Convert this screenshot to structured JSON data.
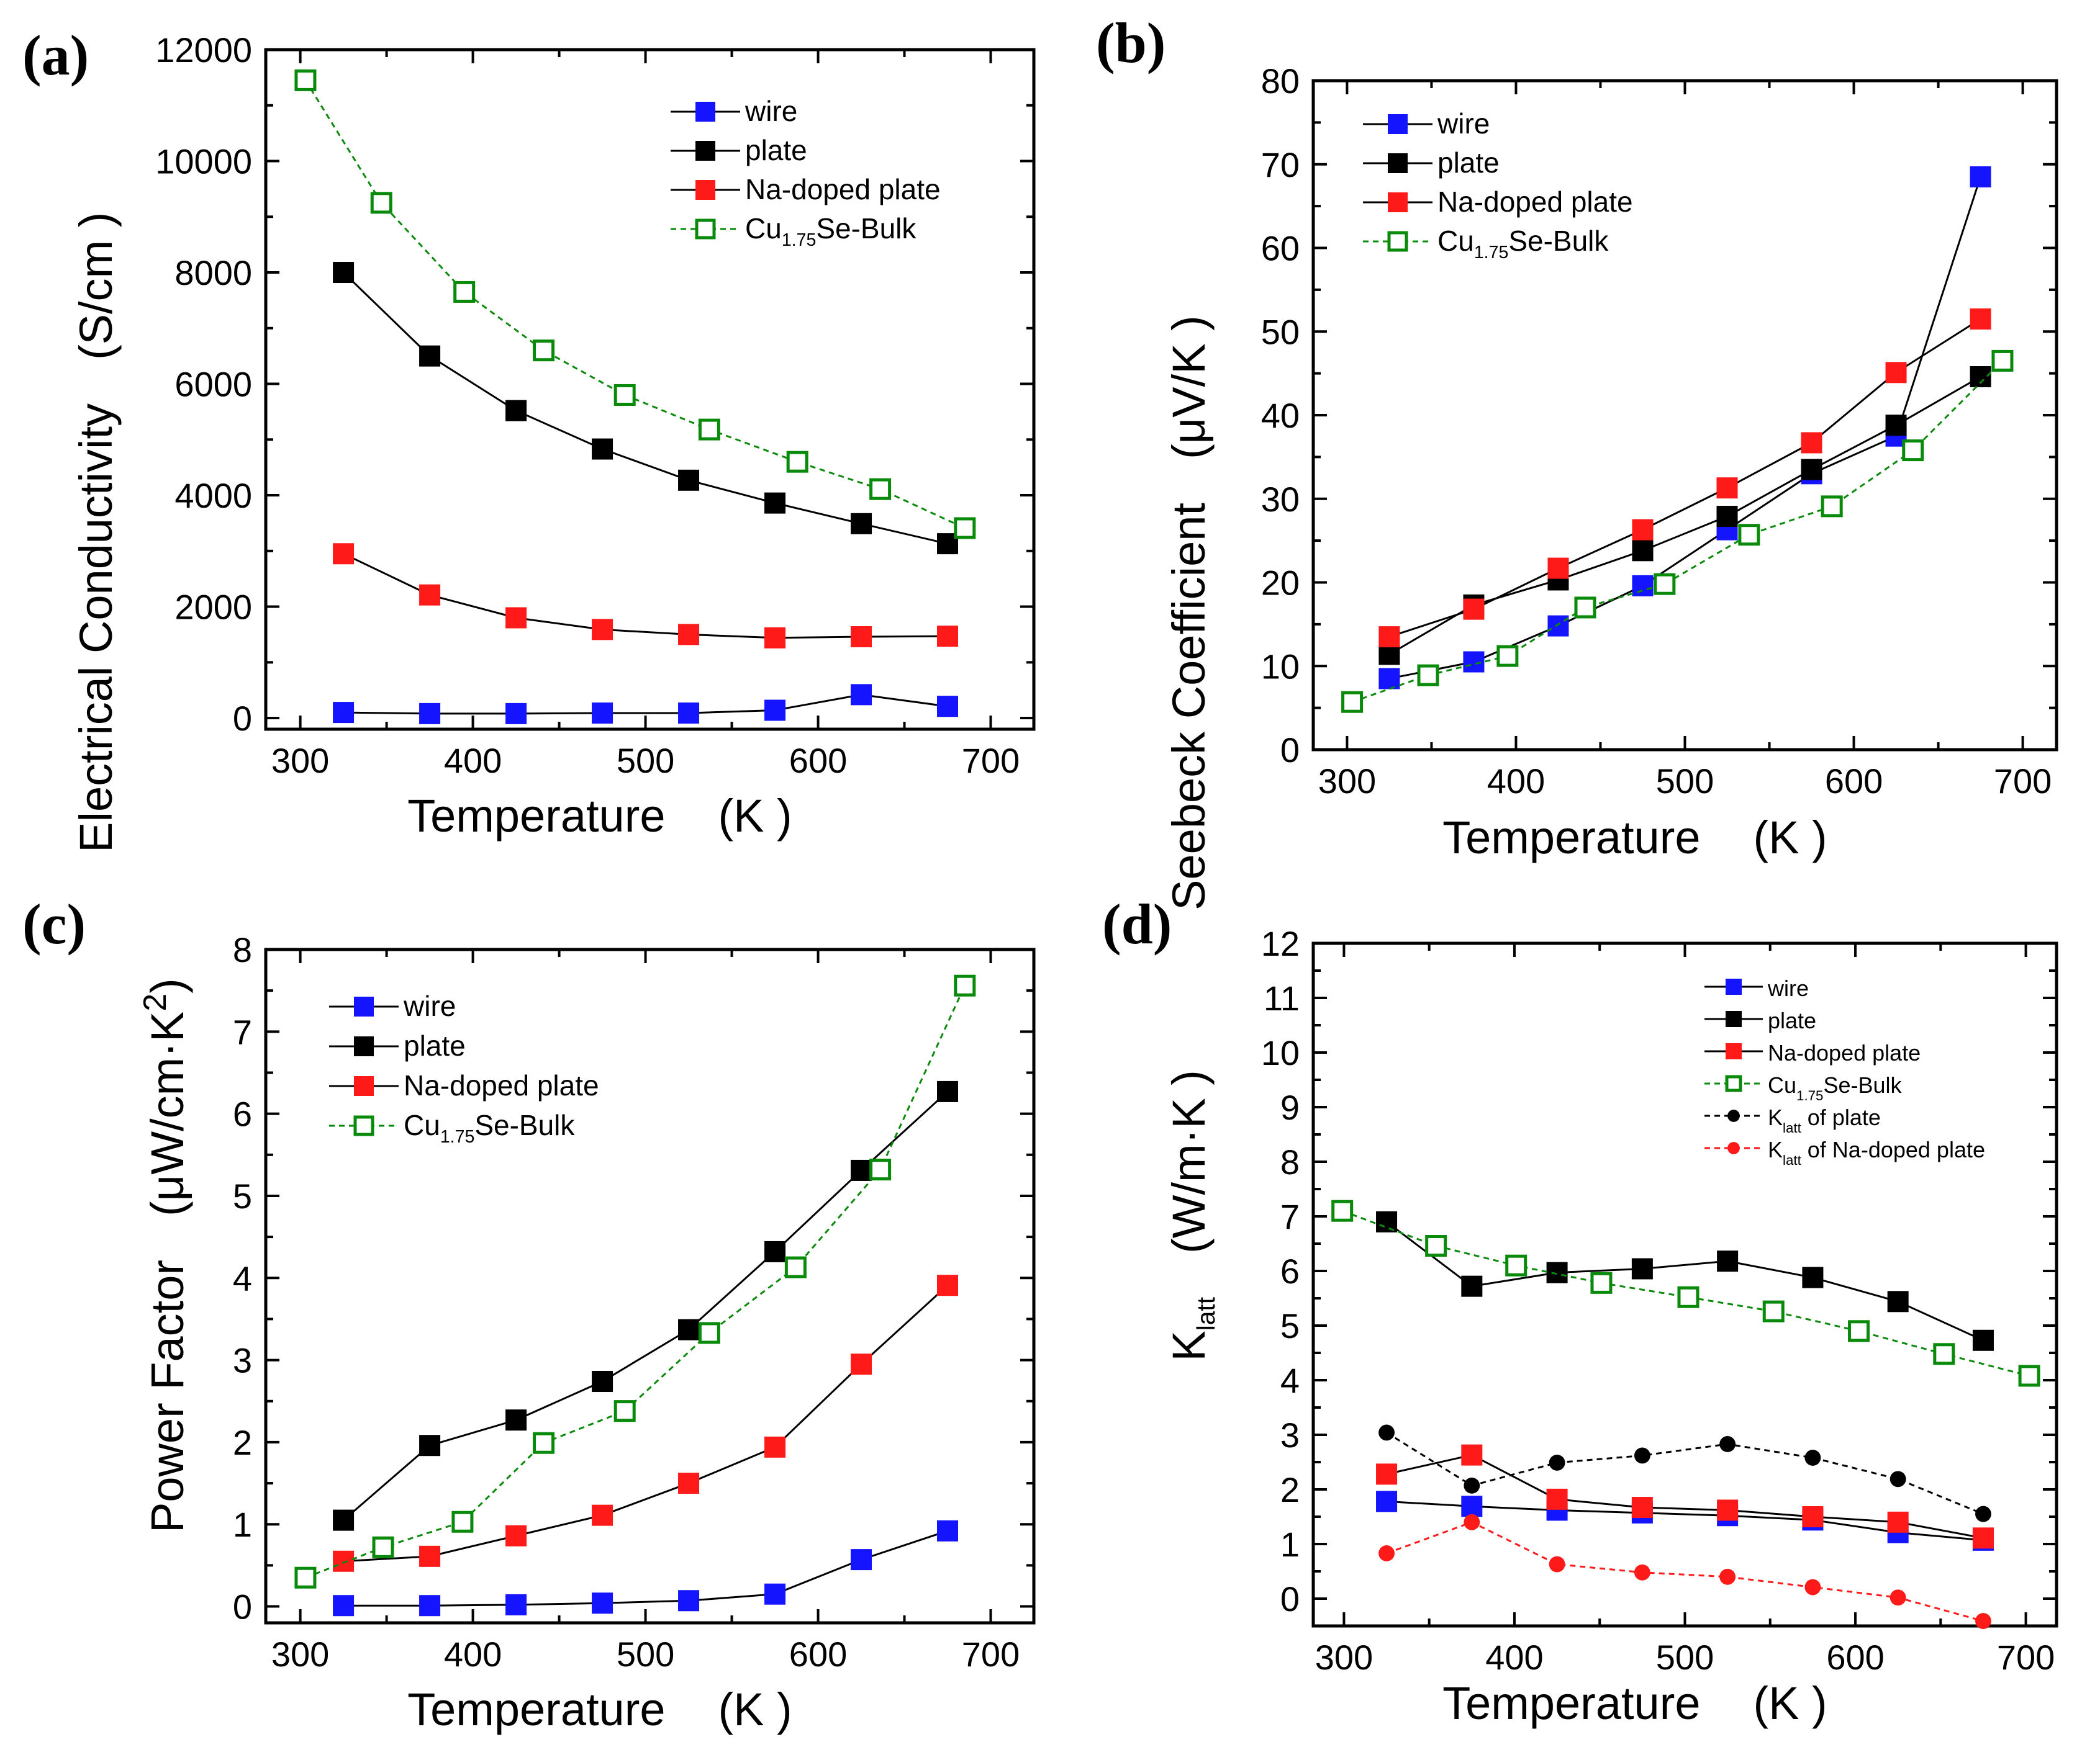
{
  "chart_data": [
    {
      "id": "a",
      "type": "line",
      "panel_label": "(a)",
      "xlabel": "Temperature",
      "xunit": "(K )",
      "ylabel": "Electrical Conductivity",
      "yunit": "(S/cm )",
      "xlim": [
        280,
        725
      ],
      "ylim": [
        -200,
        12000
      ],
      "xticks": [
        300,
        400,
        500,
        600,
        700
      ],
      "yticks": [
        0,
        2000,
        4000,
        6000,
        8000,
        10000,
        12000
      ],
      "legend_position": "top-right",
      "series": [
        {
          "name": "wire",
          "color": "#1414ff",
          "marker": "filled-square",
          "line": "solid",
          "x": [
            325,
            375,
            425,
            475,
            525,
            575,
            625,
            675
          ],
          "y": [
            100,
            80,
            80,
            90,
            90,
            140,
            420,
            210
          ]
        },
        {
          "name": "plate",
          "color": "#000000",
          "marker": "filled-square",
          "line": "solid",
          "x": [
            325,
            375,
            425,
            475,
            525,
            575,
            625,
            675
          ],
          "y": [
            8000,
            6500,
            5520,
            4830,
            4270,
            3860,
            3490,
            3130
          ]
        },
        {
          "name": "Na-doped plate",
          "color": "#ff1a1a",
          "marker": "filled-square",
          "line": "solid",
          "x": [
            325,
            375,
            425,
            475,
            525,
            575,
            625,
            675
          ],
          "y": [
            2950,
            2210,
            1800,
            1590,
            1500,
            1440,
            1460,
            1470
          ]
        },
        {
          "name": "Cu1.75Se-Bulk",
          "name_main": "Cu",
          "name_sub": "1.75",
          "name_tail": "Se-Bulk",
          "color": "#0a8a0a",
          "marker": "open-square",
          "line": "dashed",
          "x": [
            303,
            347,
            395,
            441,
            488,
            537,
            588,
            636,
            685
          ],
          "y": [
            11450,
            9250,
            7650,
            6600,
            5800,
            5180,
            4600,
            4110,
            3410
          ]
        }
      ]
    },
    {
      "id": "b",
      "type": "line",
      "panel_label": "(b)",
      "xlabel": "Temperature",
      "xunit": "(K )",
      "ylabel": "Seebeck Coefficient",
      "yunit": "(μV/K )",
      "xlim": [
        280,
        720
      ],
      "ylim": [
        0,
        80
      ],
      "xticks": [
        300,
        400,
        500,
        600,
        700
      ],
      "yticks": [
        0,
        10,
        20,
        30,
        40,
        50,
        60,
        70,
        80
      ],
      "legend_position": "top-left",
      "series": [
        {
          "name": "wire",
          "color": "#1414ff",
          "marker": "filled-square",
          "line": "solid",
          "x": [
            325,
            375,
            425,
            475,
            525,
            575,
            625,
            675
          ],
          "y": [
            8.5,
            10.5,
            14.8,
            19.6,
            26.3,
            33.0,
            37.5,
            68.5
          ]
        },
        {
          "name": "plate",
          "color": "#000000",
          "marker": "filled-square",
          "line": "solid",
          "x": [
            325,
            375,
            425,
            475,
            525,
            575,
            625,
            675
          ],
          "y": [
            11.4,
            17.3,
            20.3,
            23.8,
            27.9,
            33.5,
            38.8,
            44.6
          ]
        },
        {
          "name": "Na-doped plate",
          "color": "#ff1a1a",
          "marker": "filled-square",
          "line": "solid",
          "x": [
            325,
            375,
            425,
            475,
            525,
            575,
            625,
            675
          ],
          "y": [
            13.5,
            16.8,
            21.7,
            26.3,
            31.3,
            36.7,
            45.1,
            51.5
          ]
        },
        {
          "name": "Cu1.75Se-Bulk",
          "name_main": "Cu",
          "name_sub": "1.75",
          "name_tail": "Se-Bulk",
          "color": "#0a8a0a",
          "marker": "open-square",
          "line": "dashed",
          "x": [
            303,
            348,
            395,
            441,
            488,
            538,
            587,
            635,
            688
          ],
          "y": [
            5.7,
            8.9,
            11.2,
            17.0,
            19.8,
            25.7,
            29.1,
            35.8,
            46.5
          ]
        }
      ]
    },
    {
      "id": "c",
      "type": "line",
      "panel_label": "(c)",
      "xlabel": "Temperature",
      "xunit": "(K )",
      "ylabel": "Power Factor",
      "yunit_main": "(μW/cm·K",
      "yunit_sup": "2",
      "yunit_tail": ")",
      "xlim": [
        280,
        725
      ],
      "ylim": [
        -0.2,
        8
      ],
      "xticks": [
        300,
        400,
        500,
        600,
        700
      ],
      "yticks": [
        0,
        1,
        2,
        3,
        4,
        5,
        6,
        7,
        8
      ],
      "legend_position": "top-left",
      "series": [
        {
          "name": "wire",
          "color": "#1414ff",
          "marker": "filled-square",
          "line": "solid",
          "x": [
            325,
            375,
            425,
            475,
            525,
            575,
            625,
            675
          ],
          "y": [
            0.01,
            0.01,
            0.02,
            0.04,
            0.07,
            0.15,
            0.57,
            0.92
          ]
        },
        {
          "name": "plate",
          "color": "#000000",
          "marker": "filled-square",
          "line": "solid",
          "x": [
            325,
            375,
            425,
            475,
            525,
            575,
            625,
            675
          ],
          "y": [
            1.05,
            1.96,
            2.27,
            2.74,
            3.37,
            4.32,
            5.31,
            6.27
          ]
        },
        {
          "name": "Na-doped plate",
          "color": "#ff1a1a",
          "marker": "filled-square",
          "line": "solid",
          "x": [
            325,
            375,
            425,
            475,
            525,
            575,
            625,
            675
          ],
          "y": [
            0.55,
            0.61,
            0.86,
            1.11,
            1.5,
            1.94,
            2.95,
            3.91
          ]
        },
        {
          "name": "Cu1.75Se-Bulk",
          "name_main": "Cu",
          "name_sub": "1.75",
          "name_tail": "Se-Bulk",
          "color": "#0a8a0a",
          "marker": "open-square",
          "line": "dashed",
          "x": [
            303,
            348,
            394,
            441,
            488,
            537,
            587,
            636,
            685
          ],
          "y": [
            0.35,
            0.72,
            1.03,
            1.99,
            2.38,
            3.33,
            4.13,
            5.32,
            7.56
          ]
        }
      ]
    },
    {
      "id": "d",
      "type": "line",
      "panel_label": "(d)",
      "xlabel": "Temperature",
      "xunit": "(K )",
      "ylabel_main": "K",
      "ylabel_sub": "latt",
      "yunit": "(W/m·K )",
      "xlim": [
        282,
        718
      ],
      "ylim": [
        -0.5,
        12
      ],
      "xticks": [
        300,
        400,
        500,
        600,
        700
      ],
      "yticks": [
        0,
        1,
        2,
        3,
        4,
        5,
        6,
        7,
        8,
        9,
        10,
        11,
        12
      ],
      "legend_position": "top-right",
      "series": [
        {
          "name": "wire",
          "color": "#1414ff",
          "marker": "filled-square",
          "line": "solid",
          "x": [
            325,
            375,
            425,
            475,
            525,
            575,
            625,
            675
          ],
          "y": [
            1.78,
            1.69,
            1.62,
            1.57,
            1.52,
            1.44,
            1.21,
            1.07
          ]
        },
        {
          "name": "plate",
          "color": "#000000",
          "marker": "filled-square",
          "line": "solid",
          "x": [
            325,
            375,
            425,
            475,
            525,
            575,
            625,
            675
          ],
          "y": [
            6.9,
            5.72,
            5.97,
            6.04,
            6.18,
            5.88,
            5.44,
            4.73
          ]
        },
        {
          "name": "Na-doped plate",
          "color": "#ff1a1a",
          "marker": "filled-square",
          "line": "solid",
          "x": [
            325,
            375,
            425,
            475,
            525,
            575,
            625,
            675
          ],
          "y": [
            2.28,
            2.63,
            1.82,
            1.67,
            1.62,
            1.5,
            1.4,
            1.11
          ]
        },
        {
          "name": "Cu1.75Se-Bulk",
          "name_main": "Cu",
          "name_sub": "1.75",
          "name_tail": "Se-Bulk",
          "color": "#0a8a0a",
          "marker": "open-square",
          "line": "dashed",
          "x": [
            299,
            354,
            401,
            451,
            502,
            552,
            602,
            652,
            702
          ],
          "y": [
            7.1,
            6.46,
            6.1,
            5.78,
            5.52,
            5.26,
            4.9,
            4.48,
            4.08
          ]
        },
        {
          "name": "Klatt of plate",
          "name_main": "K",
          "name_sub": "latt",
          "name_tail": " of plate",
          "color": "#000000",
          "marker": "filled-circle",
          "line": "dashed",
          "x": [
            325,
            375,
            425,
            475,
            525,
            575,
            625,
            675
          ],
          "y": [
            3.04,
            2.07,
            2.49,
            2.62,
            2.83,
            2.58,
            2.19,
            1.55
          ]
        },
        {
          "name": "Klatt of Na-doped plate",
          "name_main": "K",
          "name_sub": "latt",
          "name_tail": " of Na-doped plate",
          "color": "#ff1a1a",
          "marker": "filled-circle",
          "line": "dashed",
          "x": [
            325,
            375,
            425,
            475,
            525,
            575,
            625,
            675
          ],
          "y": [
            0.83,
            1.4,
            0.63,
            0.48,
            0.4,
            0.21,
            0.02,
            -0.41
          ]
        }
      ]
    }
  ]
}
